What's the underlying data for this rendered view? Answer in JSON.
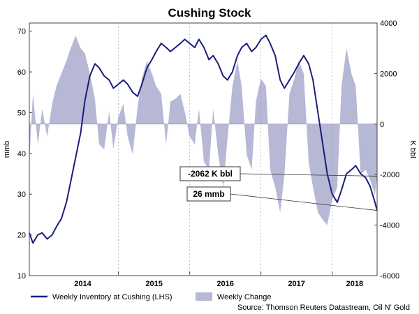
{
  "chart_data": {
    "type": "line",
    "title": "Cushing Stock",
    "ylabel": "mmb",
    "y2label": "K bbl",
    "ylim": [
      10,
      72
    ],
    "y2lim": [
      -6000,
      4000
    ],
    "yticks": [
      10,
      20,
      30,
      40,
      50,
      60,
      70
    ],
    "y2ticks": [
      -6000,
      -4000,
      -2000,
      0,
      2000,
      4000
    ],
    "x_ticks": [
      "2014",
      "2015",
      "2016",
      "2017",
      "2018"
    ],
    "x_range": [
      2013.75,
      2018.63
    ],
    "grid": false,
    "legend_placement": "bottom",
    "source": "Source: Thomson Reuters Datastream, Oil N' Gold",
    "colors": {
      "inventory": "#1a1f7a",
      "change": "#b7b7d6"
    },
    "series": [
      {
        "name": "Weekly Inventory at Cushing (LHS)",
        "axis": "left",
        "kind": "line",
        "x": [
          2013.75,
          2013.8,
          2013.87,
          2013.93,
          2014.0,
          2014.07,
          2014.13,
          2014.2,
          2014.27,
          2014.33,
          2014.4,
          2014.47,
          2014.53,
          2014.6,
          2014.67,
          2014.73,
          2014.8,
          2014.87,
          2014.93,
          2015.0,
          2015.07,
          2015.13,
          2015.2,
          2015.27,
          2015.33,
          2015.4,
          2015.47,
          2015.53,
          2015.6,
          2015.67,
          2015.73,
          2015.8,
          2015.87,
          2015.93,
          2016.0,
          2016.07,
          2016.13,
          2016.2,
          2016.27,
          2016.33,
          2016.4,
          2016.47,
          2016.53,
          2016.6,
          2016.67,
          2016.73,
          2016.8,
          2016.87,
          2016.93,
          2017.0,
          2017.07,
          2017.13,
          2017.2,
          2017.27,
          2017.33,
          2017.4,
          2017.47,
          2017.53,
          2017.6,
          2017.67,
          2017.73,
          2017.8,
          2017.87,
          2017.93,
          2018.0,
          2018.07,
          2018.13,
          2018.2,
          2018.27,
          2018.33,
          2018.4,
          2018.47,
          2018.53,
          2018.6,
          2018.63
        ],
        "values": [
          20.5,
          18,
          20,
          20.5,
          19,
          20,
          22,
          24,
          28,
          33,
          39,
          45,
          53,
          59,
          62,
          61,
          59,
          58,
          56,
          57,
          58,
          57,
          55,
          54,
          57,
          61,
          63,
          65,
          67,
          66,
          65,
          66,
          67,
          68,
          67,
          66,
          68,
          66,
          63,
          64,
          62,
          59,
          58,
          60,
          64,
          66,
          67,
          65,
          66,
          68,
          69,
          67,
          64,
          58,
          56,
          58,
          60,
          62,
          64,
          62,
          58,
          50,
          42,
          35,
          30,
          28,
          31,
          35,
          36,
          37,
          35,
          34,
          32,
          28,
          26
        ]
      },
      {
        "name": "Weekly Change",
        "axis": "right",
        "kind": "area",
        "x": [
          2013.75,
          2013.8,
          2013.87,
          2013.93,
          2014.0,
          2014.07,
          2014.13,
          2014.2,
          2014.27,
          2014.33,
          2014.4,
          2014.47,
          2014.53,
          2014.6,
          2014.67,
          2014.73,
          2014.8,
          2014.87,
          2014.93,
          2015.0,
          2015.07,
          2015.13,
          2015.2,
          2015.27,
          2015.33,
          2015.4,
          2015.47,
          2015.53,
          2015.6,
          2015.67,
          2015.73,
          2015.8,
          2015.87,
          2015.93,
          2016.0,
          2016.07,
          2016.13,
          2016.2,
          2016.27,
          2016.33,
          2016.4,
          2016.47,
          2016.53,
          2016.6,
          2016.67,
          2016.73,
          2016.8,
          2016.87,
          2016.93,
          2017.0,
          2017.07,
          2017.13,
          2017.2,
          2017.27,
          2017.33,
          2017.4,
          2017.47,
          2017.53,
          2017.6,
          2017.67,
          2017.73,
          2017.8,
          2017.87,
          2017.93,
          2018.0,
          2018.07,
          2018.13,
          2018.2,
          2018.27,
          2018.33,
          2018.4,
          2018.47,
          2018.53,
          2018.6,
          2018.63
        ],
        "values": [
          -1500,
          1200,
          -800,
          600,
          -500,
          800,
          1500,
          2000,
          2500,
          3000,
          3500,
          3000,
          2800,
          2000,
          1000,
          -800,
          -1000,
          500,
          -1000,
          300,
          800,
          -500,
          -1200,
          700,
          1800,
          2500,
          2000,
          1500,
          1200,
          -800,
          900,
          1000,
          1200,
          500,
          -500,
          -800,
          600,
          -1500,
          -1800,
          600,
          -1200,
          -2500,
          -600,
          1500,
          2500,
          1500,
          -1200,
          -1800,
          900,
          1800,
          1500,
          -1800,
          -2500,
          -3500,
          -2000,
          1200,
          1800,
          2500,
          2000,
          -1500,
          -2500,
          -3500,
          -3800,
          -4000,
          -3000,
          -2500,
          1500,
          3000,
          2000,
          1500,
          -2000,
          -1800,
          -2200,
          -2800,
          -2062
        ]
      }
    ],
    "annotations": [
      {
        "text": "-2062 K bbl",
        "points_to": {
          "axis": "right",
          "x": 2018.63,
          "y": -2062
        }
      },
      {
        "text": "26 mmb",
        "points_to": {
          "axis": "left",
          "x": 2018.63,
          "y": 26
        }
      }
    ]
  }
}
